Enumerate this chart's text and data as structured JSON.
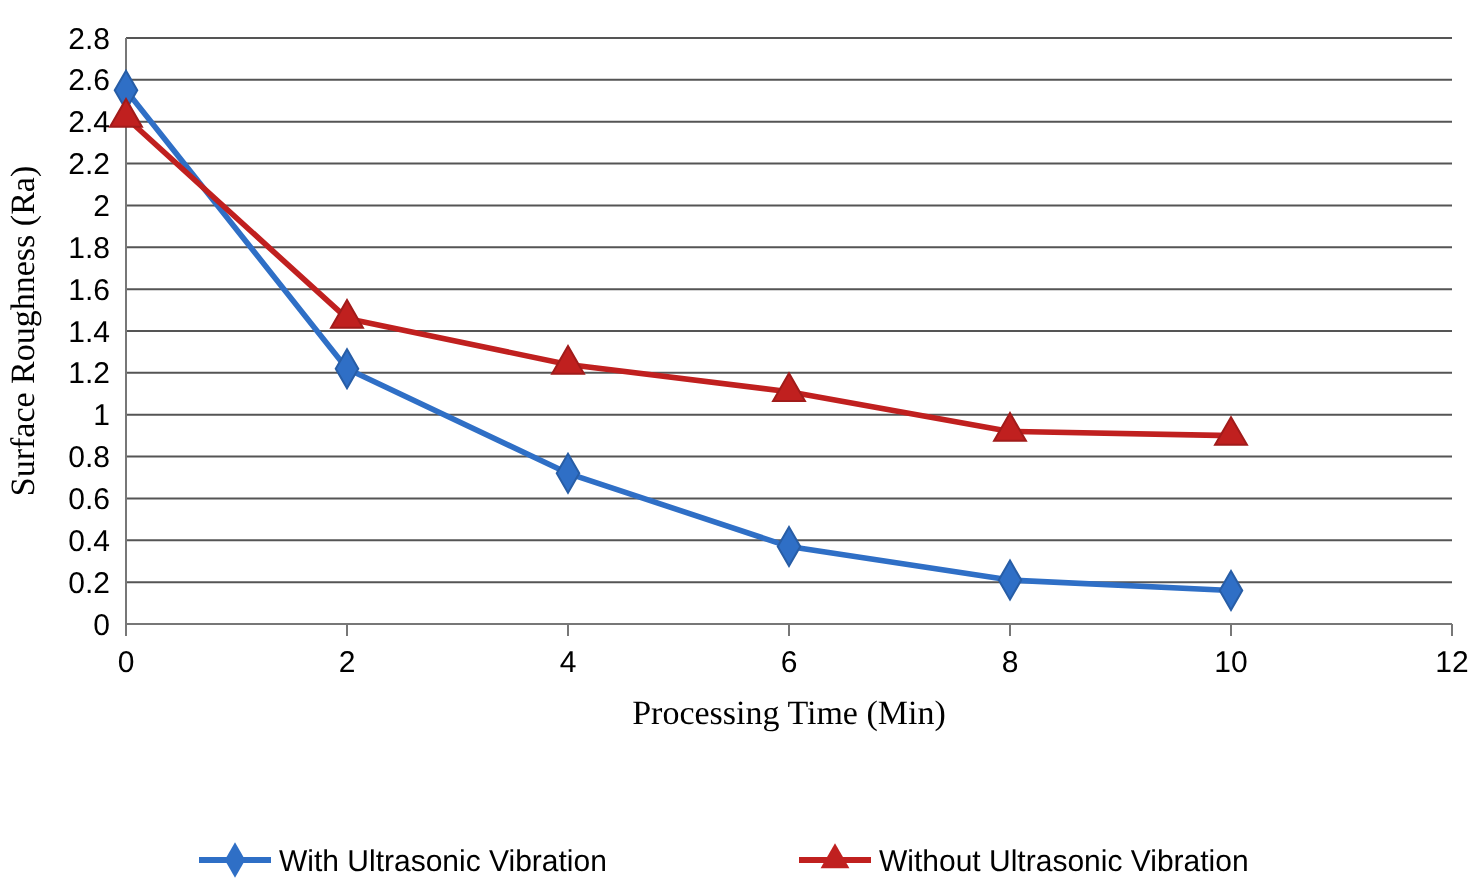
{
  "chart_data": {
    "type": "line",
    "xlabel": "Processing Time (Min)",
    "ylabel": "Surface Roughness (Ra)",
    "x": [
      0,
      2,
      4,
      6,
      8,
      10
    ],
    "series": [
      {
        "name": "With Ultrasonic Vibration",
        "color": "#2f6fc6",
        "marker": "diamond",
        "values": [
          2.55,
          1.22,
          0.72,
          0.37,
          0.21,
          0.16
        ]
      },
      {
        "name": "Without Ultrasonic Vibration",
        "color": "#c0201f",
        "marker": "triangle",
        "values": [
          2.42,
          1.46,
          1.24,
          1.11,
          0.92,
          0.9
        ]
      }
    ],
    "xlim": [
      0,
      12
    ],
    "xticks": [
      0,
      2,
      4,
      6,
      8,
      10,
      12
    ],
    "ylim": [
      0,
      2.8
    ],
    "yticks": [
      0,
      0.2,
      0.4,
      0.6,
      0.8,
      1,
      1.2,
      1.4,
      1.6,
      1.8,
      2,
      2.2,
      2.4,
      2.6,
      2.8
    ],
    "grid": "y",
    "legend": "bottom"
  }
}
